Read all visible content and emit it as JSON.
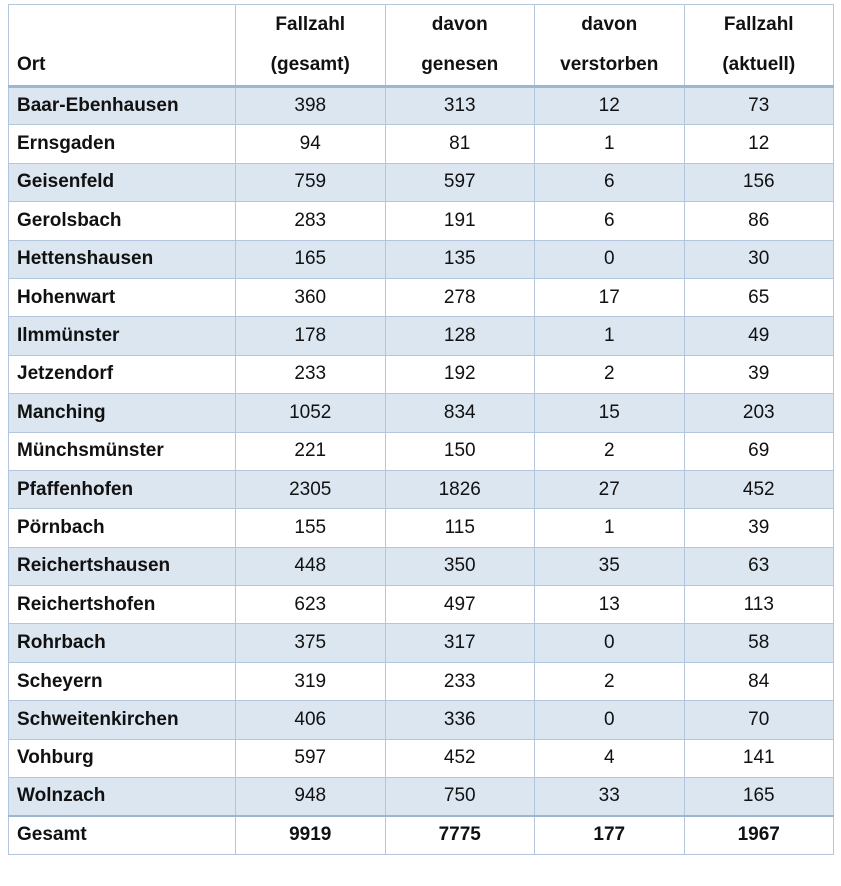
{
  "table": {
    "header": [
      [
        "Ort"
      ],
      [
        "Fallzahl",
        "(gesamt)"
      ],
      [
        "davon",
        "genesen"
      ],
      [
        "davon",
        "verstorben"
      ],
      [
        "Fallzahl",
        "(aktuell)"
      ]
    ],
    "rows": [
      [
        "Baar-Ebenhausen",
        398,
        313,
        12,
        73
      ],
      [
        "Ernsgaden",
        94,
        81,
        1,
        12
      ],
      [
        "Geisenfeld",
        759,
        597,
        6,
        156
      ],
      [
        "Gerolsbach",
        283,
        191,
        6,
        86
      ],
      [
        "Hettenshausen",
        165,
        135,
        0,
        30
      ],
      [
        "Hohenwart",
        360,
        278,
        17,
        65
      ],
      [
        "Ilmmünster",
        178,
        128,
        1,
        49
      ],
      [
        "Jetzendorf",
        233,
        192,
        2,
        39
      ],
      [
        "Manching",
        1052,
        834,
        15,
        203
      ],
      [
        "Münchsmünster",
        221,
        150,
        2,
        69
      ],
      [
        "Pfaffenhofen",
        2305,
        1826,
        27,
        452
      ],
      [
        "Pörnbach",
        155,
        115,
        1,
        39
      ],
      [
        "Reichertshausen",
        448,
        350,
        35,
        63
      ],
      [
        "Reichertshofen",
        623,
        497,
        13,
        113
      ],
      [
        "Rohrbach",
        375,
        317,
        0,
        58
      ],
      [
        "Scheyern",
        319,
        233,
        2,
        84
      ],
      [
        "Schweitenkirchen",
        406,
        336,
        0,
        70
      ],
      [
        "Vohburg",
        597,
        452,
        4,
        141
      ],
      [
        "Wolnzach",
        948,
        750,
        33,
        165
      ]
    ],
    "total": [
      "Gesamt",
      9919,
      7775,
      177,
      1967
    ]
  }
}
